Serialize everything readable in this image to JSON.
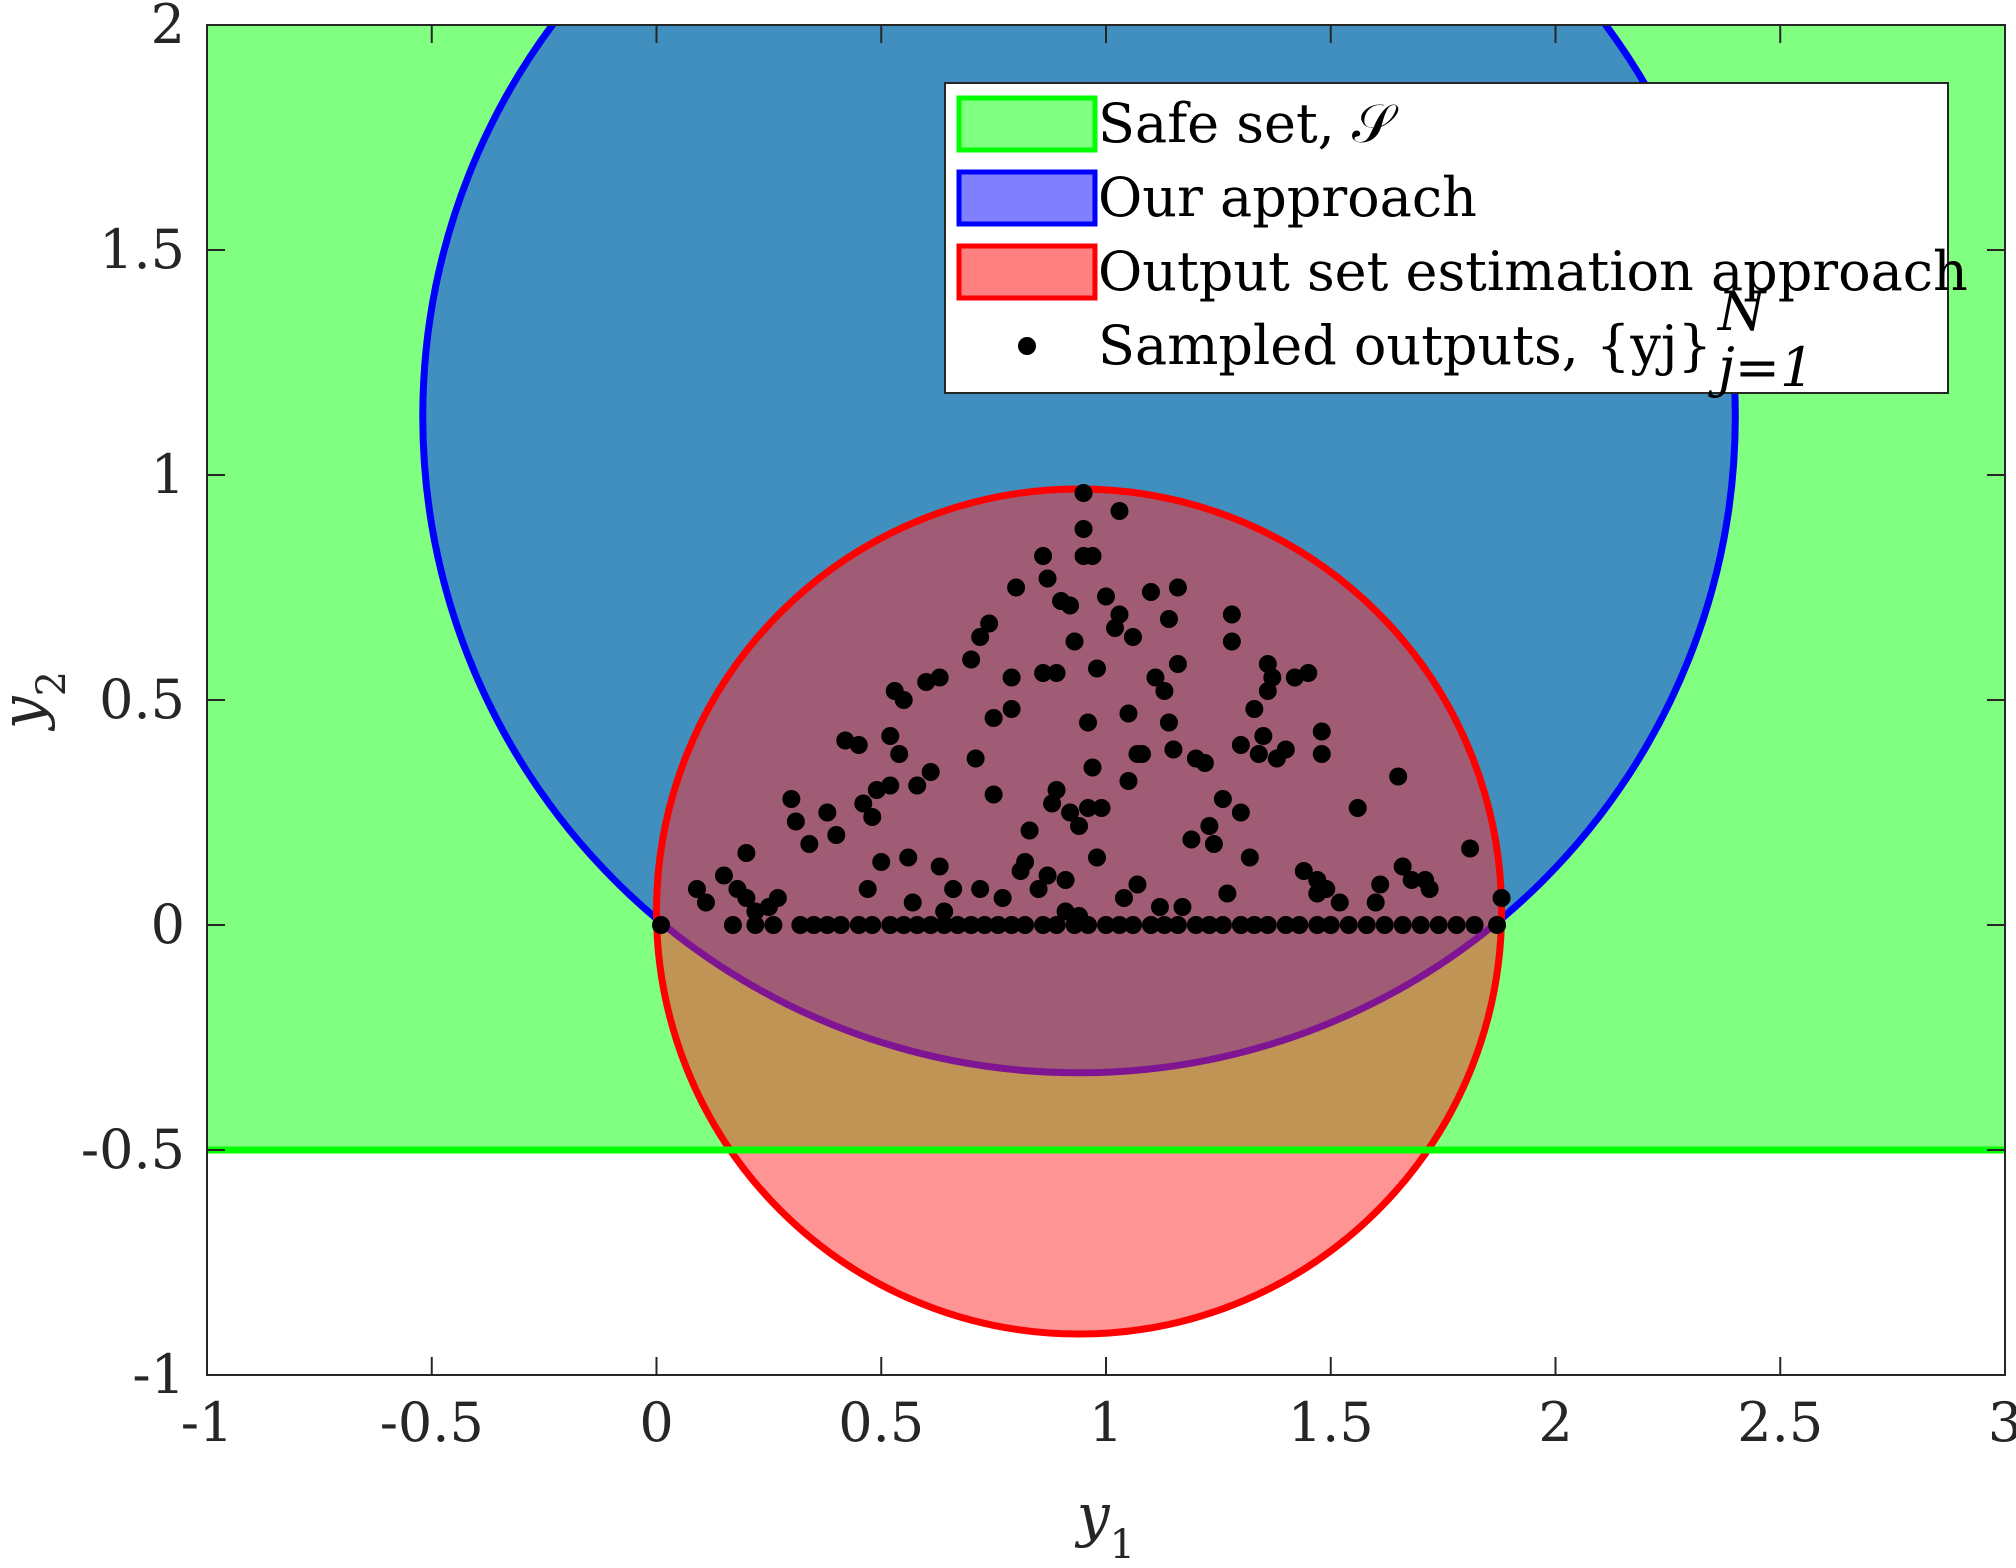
{
  "chart_data": {
    "type": "scatter",
    "xlabel": "y1",
    "ylabel": "y2",
    "xlim": [
      -1,
      3
    ],
    "ylim": [
      -1,
      2
    ],
    "x_ticks": [
      "-1",
      "-0.5",
      "0",
      "0.5",
      "1",
      "1.5",
      "2",
      "2.5",
      "3"
    ],
    "y_ticks": [
      "-1",
      "-0.5",
      "0",
      "0.5",
      "1",
      "1.5",
      "2"
    ],
    "grid": false,
    "legend_position": "top-right",
    "legend": [
      {
        "label": "Safe set, 𝒮",
        "kind": "patch",
        "fill": "#80ff80",
        "edge": "#00ff00"
      },
      {
        "label": "Our approach",
        "kind": "patch",
        "fill": "#8080ff",
        "edge": "#0000ff"
      },
      {
        "label": "Output set estimation approach",
        "kind": "patch",
        "fill": "#ff8080",
        "edge": "#ff0000"
      },
      {
        "label": "Sampled outputs, {yj}",
        "sup": "N",
        "sub": "j=1",
        "kind": "marker",
        "color": "#000000"
      }
    ],
    "regions": {
      "safe_set": {
        "shape": "halfplane",
        "y_min": -0.5,
        "fill": "#80ff80",
        "edge": "#00ff00"
      },
      "our_approach": {
        "shape": "circle",
        "center": [
          0.94,
          1.13
        ],
        "radius": 1.46,
        "fill": "#2f6fd0",
        "fill_opacity": 0.78,
        "edge": "#0000ff"
      },
      "output_set_estimation": {
        "shape": "circle",
        "center": [
          0.94,
          0.03
        ],
        "radius": 0.94,
        "fill": "#ff2a2a",
        "fill_opacity": 0.5,
        "edge": "#ff0000"
      }
    },
    "series": [
      {
        "name": "Sampled outputs",
        "color": "#000000",
        "points": [
          [
            0.01,
            0
          ],
          [
            0.09,
            0.08
          ],
          [
            0.11,
            0.05
          ],
          [
            0.15,
            0.11
          ],
          [
            0.18,
            0.08
          ],
          [
            0.2,
            0.06
          ],
          [
            0.2,
            0.16
          ],
          [
            0.22,
            0.03
          ],
          [
            0.25,
            0.04
          ],
          [
            0.27,
            0.06
          ],
          [
            0.3,
            0.28
          ],
          [
            0.31,
            0.23
          ],
          [
            0.34,
            0.18
          ],
          [
            0.38,
            0.25
          ],
          [
            0.4,
            0.2
          ],
          [
            0.42,
            0.41
          ],
          [
            0.45,
            0.4
          ],
          [
            0.46,
            0.27
          ],
          [
            0.47,
            0.08
          ],
          [
            0.48,
            0.24
          ],
          [
            0.49,
            0.3
          ],
          [
            0.5,
            0.14
          ],
          [
            0.52,
            0.31
          ],
          [
            0.52,
            0.42
          ],
          [
            0.53,
            0.52
          ],
          [
            0.54,
            0.38
          ],
          [
            0.55,
            0.5
          ],
          [
            0.56,
            0.15
          ],
          [
            0.57,
            0.05
          ],
          [
            0.58,
            0.31
          ],
          [
            0.6,
            0.54
          ],
          [
            0.61,
            0.34
          ],
          [
            0.63,
            0.55
          ],
          [
            0.63,
            0.13
          ],
          [
            0.64,
            0.03
          ],
          [
            0.66,
            0.08
          ],
          [
            0.7,
            0.59
          ],
          [
            0.71,
            0.37
          ],
          [
            0.72,
            0.64
          ],
          [
            0.72,
            0.08
          ],
          [
            0.74,
            0.67
          ],
          [
            0.75,
            0.46
          ],
          [
            0.75,
            0.29
          ],
          [
            0.77,
            0.06
          ],
          [
            0.79,
            0.55
          ],
          [
            0.79,
            0.48
          ],
          [
            0.8,
            0.75
          ],
          [
            0.81,
            0.12
          ],
          [
            0.82,
            0.14
          ],
          [
            0.83,
            0.21
          ],
          [
            0.85,
            0.08
          ],
          [
            0.86,
            0.56
          ],
          [
            0.86,
            0.82
          ],
          [
            0.87,
            0.77
          ],
          [
            0.87,
            0.11
          ],
          [
            0.88,
            0.27
          ],
          [
            0.89,
            0.56
          ],
          [
            0.89,
            0.3
          ],
          [
            0.9,
            0.72
          ],
          [
            0.91,
            0.1
          ],
          [
            0.91,
            0.03
          ],
          [
            0.92,
            0.71
          ],
          [
            0.92,
            0.25
          ],
          [
            0.93,
            0.63
          ],
          [
            0.94,
            0.22
          ],
          [
            0.94,
            0.02
          ],
          [
            0.95,
            0.82
          ],
          [
            0.95,
            0.88
          ],
          [
            0.95,
            0.96
          ],
          [
            0.96,
            0.45
          ],
          [
            0.96,
            0.26
          ],
          [
            0.97,
            0.35
          ],
          [
            0.97,
            0.82
          ],
          [
            0.98,
            0.57
          ],
          [
            0.98,
            0.15
          ],
          [
            0.99,
            0.26
          ],
          [
            1.0,
            0.73
          ],
          [
            1.02,
            0.66
          ],
          [
            1.03,
            0.92
          ],
          [
            1.03,
            0.69
          ],
          [
            1.04,
            0.06
          ],
          [
            1.05,
            0.47
          ],
          [
            1.05,
            0.32
          ],
          [
            1.06,
            0.64
          ],
          [
            1.07,
            0.38
          ],
          [
            1.07,
            0.09
          ],
          [
            1.08,
            0.38
          ],
          [
            1.1,
            0.74
          ],
          [
            1.11,
            0.55
          ],
          [
            1.12,
            0.04
          ],
          [
            1.13,
            0.52
          ],
          [
            1.14,
            0.68
          ],
          [
            1.14,
            0.45
          ],
          [
            1.15,
            0.39
          ],
          [
            1.16,
            0.58
          ],
          [
            1.16,
            0.75
          ],
          [
            1.17,
            0.04
          ],
          [
            1.19,
            0.19
          ],
          [
            1.2,
            0.37
          ],
          [
            1.22,
            0.36
          ],
          [
            1.23,
            0.22
          ],
          [
            1.24,
            0.18
          ],
          [
            1.26,
            0.28
          ],
          [
            1.27,
            0.07
          ],
          [
            1.28,
            0.63
          ],
          [
            1.28,
            0.69
          ],
          [
            1.3,
            0.25
          ],
          [
            1.3,
            0.4
          ],
          [
            1.32,
            0.15
          ],
          [
            1.33,
            0.48
          ],
          [
            1.34,
            0.38
          ],
          [
            1.35,
            0.42
          ],
          [
            1.36,
            0.58
          ],
          [
            1.36,
            0.52
          ],
          [
            1.37,
            0.55
          ],
          [
            1.38,
            0.37
          ],
          [
            1.4,
            0.39
          ],
          [
            1.42,
            0.55
          ],
          [
            1.44,
            0.12
          ],
          [
            1.45,
            0.56
          ],
          [
            1.47,
            0.1
          ],
          [
            1.47,
            0.07
          ],
          [
            1.48,
            0.43
          ],
          [
            1.48,
            0.38
          ],
          [
            1.49,
            0.08
          ],
          [
            1.52,
            0.05
          ],
          [
            1.56,
            0.26
          ],
          [
            1.6,
            0.05
          ],
          [
            1.61,
            0.09
          ],
          [
            1.65,
            0.33
          ],
          [
            1.66,
            0.13
          ],
          [
            1.68,
            0.1
          ],
          [
            1.71,
            0.1
          ],
          [
            1.72,
            0.08
          ],
          [
            1.81,
            0.17
          ],
          [
            1.87,
            0.0
          ],
          [
            1.88,
            0.06
          ],
          [
            0.32,
            0
          ],
          [
            0.35,
            0
          ],
          [
            0.38,
            0
          ],
          [
            0.41,
            0
          ],
          [
            0.45,
            0
          ],
          [
            0.48,
            0
          ],
          [
            0.52,
            0
          ],
          [
            0.55,
            0
          ],
          [
            0.58,
            0
          ],
          [
            0.61,
            0
          ],
          [
            0.64,
            0
          ],
          [
            0.67,
            0
          ],
          [
            0.7,
            0
          ],
          [
            0.73,
            0
          ],
          [
            0.76,
            0
          ],
          [
            0.79,
            0
          ],
          [
            0.82,
            0
          ],
          [
            0.86,
            0
          ],
          [
            0.89,
            0
          ],
          [
            0.93,
            0
          ],
          [
            0.96,
            0
          ],
          [
            1.0,
            0
          ],
          [
            1.03,
            0
          ],
          [
            1.06,
            0
          ],
          [
            1.1,
            0
          ],
          [
            1.13,
            0
          ],
          [
            1.16,
            0
          ],
          [
            1.2,
            0
          ],
          [
            1.23,
            0
          ],
          [
            1.26,
            0
          ],
          [
            1.3,
            0
          ],
          [
            1.33,
            0
          ],
          [
            1.36,
            0
          ],
          [
            1.4,
            0
          ],
          [
            1.43,
            0
          ],
          [
            1.47,
            0
          ],
          [
            1.5,
            0
          ],
          [
            1.54,
            0
          ],
          [
            1.58,
            0
          ],
          [
            1.62,
            0
          ],
          [
            1.66,
            0
          ],
          [
            1.7,
            0
          ],
          [
            1.74,
            0
          ],
          [
            1.78,
            0
          ],
          [
            1.82,
            0
          ],
          [
            0.17,
            0
          ],
          [
            0.22,
            0
          ],
          [
            0.26,
            0
          ]
        ]
      }
    ]
  }
}
